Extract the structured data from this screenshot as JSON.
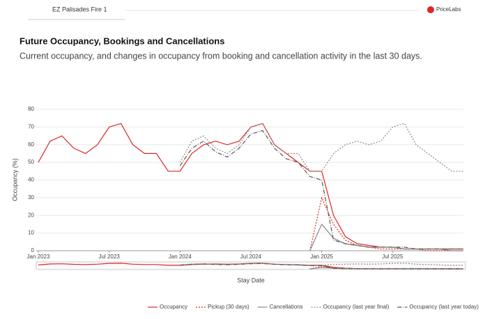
{
  "header": {
    "tab": "EZ Palisades Fire 1",
    "logo": "PriceLabs"
  },
  "chart_data": {
    "type": "line",
    "title": "Future Occupancy, Bookings and Cancellations",
    "subtitle": "Current occupancy, and changes in occupancy from booking and cancellation activity in the last 30 days.",
    "y_label": "Occupancy (%)",
    "x_label": "Stay Date",
    "x": [
      "2023-01",
      "2023-02",
      "2023-03",
      "2023-04",
      "2023-05",
      "2023-06",
      "2023-07",
      "2023-08",
      "2023-09",
      "2023-10",
      "2023-11",
      "2023-12",
      "2024-01",
      "2024-02",
      "2024-03",
      "2024-04",
      "2024-05",
      "2024-06",
      "2024-07",
      "2024-08",
      "2024-09",
      "2024-10",
      "2024-11",
      "2024-12",
      "2025-01",
      "2025-02",
      "2025-03",
      "2025-04",
      "2025-05",
      "2025-06",
      "2025-07",
      "2025-08",
      "2025-09",
      "2025-10",
      "2025-11",
      "2025-12",
      "2026-01"
    ],
    "xlim": [
      "2023-01",
      "2026-01"
    ],
    "xticks": [
      {
        "value": "2023-01",
        "label": "Jan 2023"
      },
      {
        "value": "2023-07",
        "label": "Jul 2023"
      },
      {
        "value": "2024-01",
        "label": "Jan 2024"
      },
      {
        "value": "2024-07",
        "label": "Jul 2024"
      },
      {
        "value": "2025-01",
        "label": "Jan 2025"
      },
      {
        "value": "2025-07",
        "label": "Jul 2025"
      }
    ],
    "ylim": [
      0,
      80
    ],
    "yticks": [
      0,
      10,
      20,
      30,
      40,
      50,
      60,
      70,
      80
    ],
    "grid": true,
    "series": [
      {
        "name": "Occupancy",
        "color": "#e02424",
        "dash": "solid",
        "values": [
          50,
          62,
          65,
          58,
          55,
          60,
          70,
          72,
          60,
          55,
          55,
          45,
          45,
          55,
          60,
          62,
          60,
          62,
          70,
          72,
          60,
          55,
          50,
          45,
          45,
          20,
          8,
          4,
          3,
          2,
          2,
          1,
          1,
          1,
          1,
          1,
          1
        ]
      },
      {
        "name": "Pickup (30 days)",
        "color": "#e02424",
        "dash": "dot",
        "values": [
          null,
          null,
          null,
          null,
          null,
          null,
          null,
          null,
          null,
          null,
          null,
          null,
          null,
          null,
          null,
          null,
          null,
          null,
          null,
          null,
          null,
          null,
          null,
          0,
          30,
          15,
          6,
          3,
          2,
          1,
          1,
          1,
          1,
          0,
          0,
          0,
          0
        ]
      },
      {
        "name": "Cancellations",
        "color": "#8a8a8a",
        "dash": "solid",
        "values": [
          null,
          null,
          null,
          null,
          null,
          null,
          null,
          null,
          null,
          null,
          null,
          null,
          null,
          null,
          null,
          null,
          null,
          null,
          null,
          null,
          null,
          null,
          null,
          0,
          15,
          7,
          4,
          3,
          2,
          2,
          2,
          1,
          1,
          1,
          1,
          0,
          0
        ]
      },
      {
        "name": "Occupancy (last year final)",
        "color": "#8a8a8a",
        "dash": "dot",
        "values": [
          null,
          null,
          null,
          null,
          null,
          null,
          null,
          null,
          null,
          null,
          null,
          null,
          50,
          62,
          65,
          58,
          55,
          60,
          70,
          72,
          60,
          55,
          55,
          45,
          45,
          55,
          60,
          62,
          60,
          62,
          70,
          72,
          60,
          55,
          50,
          45,
          45
        ]
      },
      {
        "name": "Occupancy (last year today)",
        "color": "#555555",
        "dash": "dashdot",
        "values": [
          null,
          null,
          null,
          null,
          null,
          null,
          null,
          null,
          null,
          null,
          null,
          null,
          48,
          58,
          62,
          56,
          53,
          58,
          66,
          68,
          58,
          52,
          50,
          42,
          40,
          6,
          4,
          3,
          2,
          2,
          2,
          2,
          1,
          1,
          1,
          1,
          1
        ]
      }
    ]
  }
}
